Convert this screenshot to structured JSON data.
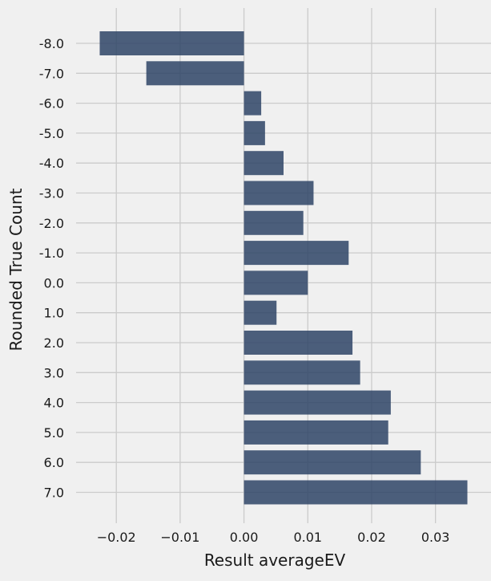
{
  "chart_data": {
    "type": "bar",
    "orientation": "horizontal",
    "title": "",
    "xlabel": "Result averageEV",
    "ylabel": "Rounded True Count",
    "categories": [
      "-8.0",
      "-7.0",
      "-6.0",
      "-5.0",
      "-4.0",
      "-3.0",
      "-2.0",
      "-1.0",
      "0.0",
      "1.0",
      "2.0",
      "3.0",
      "4.0",
      "5.0",
      "6.0",
      "7.0"
    ],
    "values": [
      -0.0226,
      -0.0153,
      0.0027,
      0.0033,
      0.0062,
      0.0109,
      0.0093,
      0.0164,
      0.01,
      0.0051,
      0.017,
      0.0182,
      0.023,
      0.0226,
      0.0277,
      0.035
    ],
    "xlim": [
      -0.0263,
      0.0387
    ],
    "xticks": [
      -0.02,
      -0.01,
      0.0,
      0.01,
      0.02,
      0.03
    ],
    "xtick_labels": [
      "−0.02",
      "−0.01",
      "0.00",
      "0.01",
      "0.02",
      "0.03"
    ],
    "bar_color": "#2e4466",
    "grid": true,
    "background": "#f0f0f0",
    "grid_color": "#cbcbcb"
  }
}
